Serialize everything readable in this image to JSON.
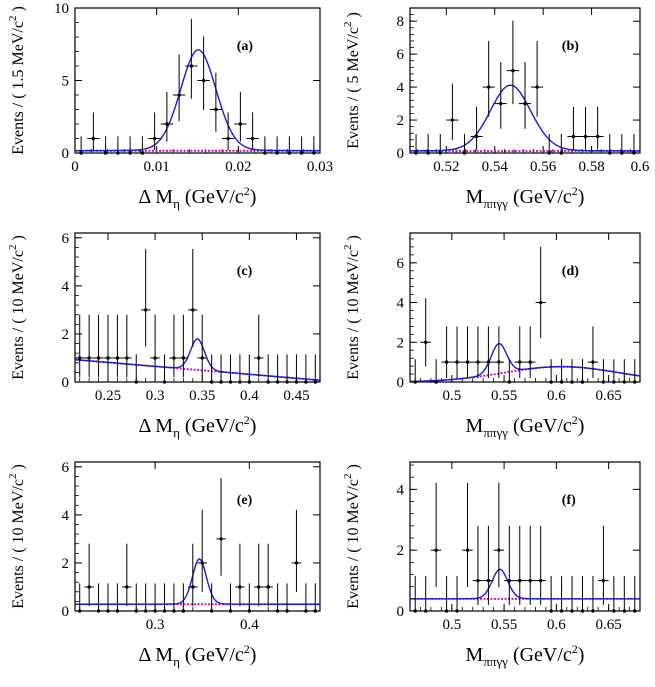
{
  "chart_data": [
    {
      "type": "scatter",
      "label": "(a)",
      "xlabel": "Δ M_η (GeV/c²)",
      "xlabel_parts": {
        "pre": "Δ M",
        "sub": "η",
        "post": " (GeV/c",
        "sup": "2",
        "end": ")"
      },
      "ylabel": "Events / ( 1.5 MeV/c² )",
      "ylabel_parts": {
        "pre": "Events / ( 1.5 MeV/c",
        "sup": "2",
        "post": " )"
      },
      "xlim": [
        0,
        0.03
      ],
      "ylim": [
        0,
        10
      ],
      "xticks": [
        0,
        0.01,
        0.02,
        0.03
      ],
      "xtick_labels": [
        "0",
        "0.01",
        "0.02",
        "0.03"
      ],
      "yticks": [
        0,
        5,
        10
      ],
      "ytick_labels": [
        "0",
        "5",
        "10"
      ],
      "points": {
        "x": [
          0.00075,
          0.00225,
          0.00375,
          0.00525,
          0.00675,
          0.00825,
          0.00975,
          0.01125,
          0.01275,
          0.01425,
          0.01575,
          0.01725,
          0.01875,
          0.02025,
          0.02175,
          0.02325,
          0.02475,
          0.02625,
          0.02775,
          0.02925
        ],
        "y": [
          0,
          1,
          0,
          0,
          0,
          0,
          1,
          2,
          4,
          6,
          5,
          3,
          1,
          2,
          1,
          0,
          0,
          0,
          0,
          0
        ]
      },
      "signal": {
        "mean": 0.0151,
        "sigma": 0.0022,
        "amp": 6.45,
        "bkg": 0.15
      },
      "background": {
        "a": 0.15,
        "b": 0
      }
    },
    {
      "type": "scatter",
      "label": "(b)",
      "xlabel": "M_ππγγ (GeV/c²)",
      "xlabel_parts": {
        "pre": "M",
        "sub": "ππγγ",
        "post": " (GeV/c",
        "sup": "2",
        "end": ")"
      },
      "ylabel": "Events / ( 5 MeV/c² )",
      "ylabel_parts": {
        "pre": "Events / ( 5 MeV/c",
        "sup": "2",
        "post": " )"
      },
      "xlim": [
        0.505,
        0.6
      ],
      "ylim": [
        0,
        8.8
      ],
      "xticks": [
        0.52,
        0.54,
        0.56,
        0.58,
        0.6
      ],
      "xtick_labels": [
        "0.52",
        "0.54",
        "0.56",
        "0.58",
        "0.6"
      ],
      "yticks": [
        0,
        2,
        4,
        6,
        8
      ],
      "ytick_labels": [
        "0",
        "2",
        "4",
        "6",
        "8"
      ],
      "points": {
        "x": [
          0.5075,
          0.5125,
          0.5175,
          0.5225,
          0.5275,
          0.5325,
          0.5375,
          0.5425,
          0.5475,
          0.5525,
          0.5575,
          0.5625,
          0.5675,
          0.5725,
          0.5775,
          0.5825,
          0.5875,
          0.5925,
          0.5975
        ],
        "y": [
          0,
          0,
          0,
          2,
          0,
          1,
          4,
          3,
          5,
          3,
          4,
          0,
          0,
          1,
          1,
          1,
          0,
          0,
          0
        ]
      },
      "signal": {
        "mean": 0.5465,
        "sigma": 0.0085,
        "amp": 3.7,
        "bkg": 0.12
      },
      "background": {
        "a": 0.12,
        "b": 0
      }
    },
    {
      "type": "scatter",
      "label": "(c)",
      "xlabel": "Δ M_η (GeV/c²)",
      "xlabel_parts": {
        "pre": "Δ M",
        "sub": "η",
        "post": " (GeV/c",
        "sup": "2",
        "end": ")"
      },
      "ylabel": "Events / ( 10 MeV/c² )",
      "ylabel_parts": {
        "pre": "Events / ( 10 MeV/c",
        "sup": "2",
        "post": " )"
      },
      "xlim": [
        0.215,
        0.475
      ],
      "ylim": [
        0,
        6.2
      ],
      "xticks": [
        0.25,
        0.3,
        0.35,
        0.4,
        0.45
      ],
      "xtick_labels": [
        "0.25",
        "0.3",
        "0.35",
        "0.4",
        "0.45"
      ],
      "yticks": [
        0,
        2,
        4,
        6
      ],
      "ytick_labels": [
        "0",
        "2",
        "4",
        "6"
      ],
      "points": {
        "x": [
          0.22,
          0.23,
          0.24,
          0.25,
          0.26,
          0.27,
          0.28,
          0.29,
          0.3,
          0.31,
          0.32,
          0.33,
          0.34,
          0.35,
          0.36,
          0.37,
          0.38,
          0.39,
          0.4,
          0.41,
          0.42,
          0.43,
          0.44,
          0.45,
          0.46,
          0.47
        ],
        "y": [
          1,
          1,
          1,
          1,
          1,
          1,
          0,
          3,
          1,
          0,
          1,
          1,
          3,
          1,
          0,
          0,
          0,
          0,
          0,
          1,
          0,
          0,
          0,
          0,
          0,
          0
        ]
      },
      "signal": {
        "mean": 0.345,
        "sigma": 0.0075,
        "amp": 1.2,
        "bkg_a": 0.93,
        "bkg_b": -3.3
      },
      "background": {
        "a": 0.93,
        "b": -3.3
      }
    },
    {
      "type": "scatter",
      "label": "(d)",
      "xlabel": "M_ππγγ (GeV/c²)",
      "xlabel_parts": {
        "pre": "M",
        "sub": "ππγγ",
        "post": " (GeV/c",
        "sup": "2",
        "end": ")"
      },
      "ylabel": "Events / ( 10 MeV/c² )",
      "ylabel_parts": {
        "pre": "Events / ( 10 MeV/c",
        "sup": "2",
        "post": " )"
      },
      "xlim": [
        0.46,
        0.68
      ],
      "ylim": [
        0,
        7.5
      ],
      "xticks": [
        0.5,
        0.55,
        0.6,
        0.65
      ],
      "xtick_labels": [
        "0.5",
        "0.55",
        "0.6",
        "0.65"
      ],
      "yticks": [
        0,
        2,
        4,
        6
      ],
      "ytick_labels": [
        "0",
        "2",
        "4",
        "6"
      ],
      "points": {
        "x": [
          0.465,
          0.475,
          0.485,
          0.495,
          0.505,
          0.515,
          0.525,
          0.535,
          0.545,
          0.555,
          0.565,
          0.575,
          0.585,
          0.595,
          0.605,
          0.615,
          0.625,
          0.635,
          0.645,
          0.655,
          0.665,
          0.675
        ],
        "y": [
          0,
          2,
          0,
          1,
          1,
          1,
          1,
          1,
          1,
          0,
          1,
          1,
          4,
          0,
          0,
          0,
          0,
          1,
          0,
          0,
          0,
          0
        ]
      },
      "signal": {
        "mean": 0.545,
        "sigma": 0.0075,
        "amp": 1.4
      },
      "background": {
        "peak": 0.77,
        "center": 0.605,
        "width": 0.055
      }
    },
    {
      "type": "scatter",
      "label": "(e)",
      "xlabel": "Δ M_η (GeV/c²)",
      "xlabel_parts": {
        "pre": "Δ M",
        "sub": "η",
        "post": " (GeV/c",
        "sup": "2",
        "end": ")"
      },
      "ylabel": "Events / ( 10 MeV/c² )",
      "ylabel_parts": {
        "pre": "Events / ( 10 MeV/c",
        "sup": "2",
        "post": " )"
      },
      "xlim": [
        0.215,
        0.475
      ],
      "ylim": [
        0,
        6.2
      ],
      "xticks": [
        0.3,
        0.4
      ],
      "xtick_labels": [
        "0.3",
        "0.4"
      ],
      "yticks": [
        0,
        2,
        4,
        6
      ],
      "ytick_labels": [
        "0",
        "2",
        "4",
        "6"
      ],
      "points": {
        "x": [
          0.22,
          0.23,
          0.24,
          0.25,
          0.26,
          0.27,
          0.28,
          0.29,
          0.3,
          0.31,
          0.32,
          0.33,
          0.34,
          0.35,
          0.36,
          0.37,
          0.38,
          0.39,
          0.4,
          0.41,
          0.42,
          0.43,
          0.44,
          0.45,
          0.46,
          0.47
        ],
        "y": [
          0,
          1,
          0,
          0,
          0,
          1,
          0,
          0,
          0,
          0,
          0,
          0,
          1,
          2,
          0,
          3,
          0,
          1,
          0,
          1,
          1,
          0,
          0,
          2,
          0,
          0
        ]
      },
      "signal": {
        "mean": 0.347,
        "sigma": 0.0075,
        "amp": 1.75,
        "bkg": 0.28
      },
      "background": {
        "a": 0.28,
        "b": 0
      }
    },
    {
      "type": "scatter",
      "label": "(f)",
      "xlabel": "M_ππγγ (GeV/c²)",
      "xlabel_parts": {
        "pre": "M",
        "sub": "ππγγ",
        "post": " (GeV/c",
        "sup": "2",
        "end": ")"
      },
      "ylabel": "Events / ( 10 MeV/c² )",
      "ylabel_parts": {
        "pre": "Events / ( 10 MeV/c",
        "sup": "2",
        "post": " )"
      },
      "xlim": [
        0.46,
        0.68
      ],
      "ylim": [
        0,
        4.9
      ],
      "xticks": [
        0.5,
        0.55,
        0.6,
        0.65
      ],
      "xtick_labels": [
        "0.5",
        "0.55",
        "0.6",
        "0.65"
      ],
      "yticks": [
        0,
        2,
        4
      ],
      "ytick_labels": [
        "0",
        "2",
        "4"
      ],
      "points": {
        "x": [
          0.465,
          0.475,
          0.485,
          0.495,
          0.505,
          0.515,
          0.525,
          0.535,
          0.545,
          0.555,
          0.565,
          0.575,
          0.585,
          0.595,
          0.605,
          0.615,
          0.625,
          0.635,
          0.645,
          0.655,
          0.665,
          0.675
        ],
        "y": [
          0,
          0,
          2,
          0,
          0,
          2,
          1,
          1,
          2,
          1,
          1,
          1,
          1,
          0,
          0,
          0,
          0,
          0,
          1,
          0,
          0,
          0
        ]
      },
      "signal": {
        "mean": 0.546,
        "sigma": 0.0075,
        "amp": 0.9,
        "bkg": 0.4
      },
      "background": {
        "a": 0.4,
        "b": 0
      }
    }
  ],
  "colors": {
    "fit_curve": "#1a1adc",
    "background_curve": "#c800c8",
    "points": "#000000",
    "frame": "#000000",
    "background": "#ffffff"
  }
}
